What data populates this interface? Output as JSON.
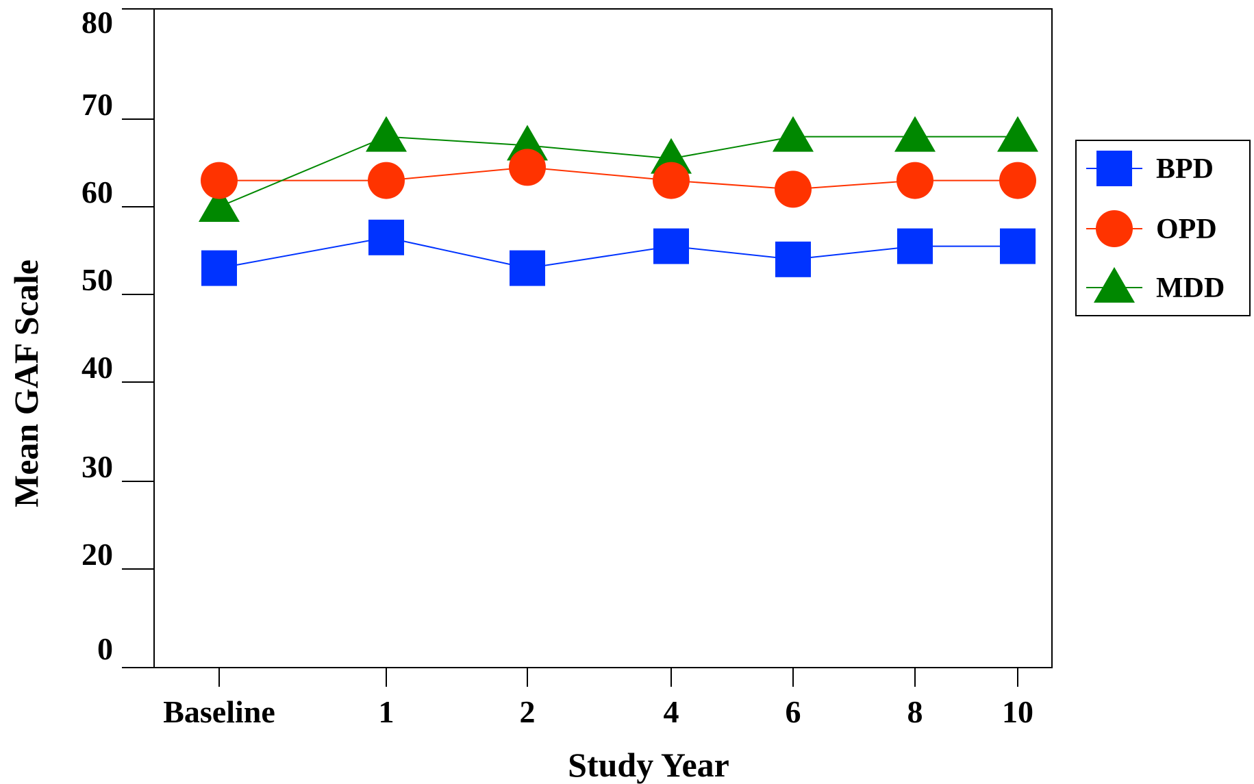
{
  "chart_data": {
    "type": "line",
    "title": "",
    "xlabel": "Study Year",
    "ylabel": "Mean GAF Scale",
    "categories": [
      "Baseline",
      "1",
      "2",
      "4",
      "6",
      "8",
      "10"
    ],
    "ylim": [
      0,
      80
    ],
    "yticks": [
      "0",
      "20",
      "30",
      "40",
      "50",
      "60",
      "70",
      "80"
    ],
    "grid": false,
    "legend_position": "right",
    "series": [
      {
        "name": "BPD",
        "marker": "square",
        "color": "#0033ff",
        "values": [
          53,
          56.5,
          53,
          55.5,
          54,
          55.5,
          55.5
        ]
      },
      {
        "name": "OPD",
        "marker": "circle",
        "color": "#ff3300",
        "values": [
          63,
          63,
          64.5,
          63,
          62,
          63,
          63
        ]
      },
      {
        "name": "MDD",
        "marker": "triangle",
        "color": "#008800",
        "values": [
          60,
          68,
          67,
          65.5,
          68,
          68,
          68
        ]
      }
    ]
  }
}
